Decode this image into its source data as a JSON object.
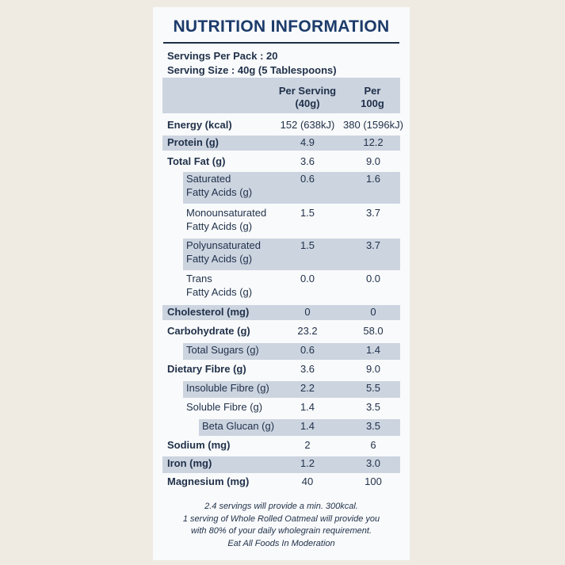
{
  "title": "NUTRITION INFORMATION",
  "servings_per_pack": "Servings Per Pack : 20",
  "serving_size": "Serving Size : 40g (5 Tablespoons)",
  "headers": {
    "per_serving_line1": "Per Serving",
    "per_serving_line2": "(40g)",
    "per_100g_line1": "Per",
    "per_100g_line2": "100g"
  },
  "rows": [
    {
      "line1": "Energy (kcal)",
      "line2": "",
      "per_serving": "152 (638kJ)",
      "per_100g": "380 (1596kJ)"
    },
    {
      "line1": "Protein (g)",
      "line2": "",
      "per_serving": "4.9",
      "per_100g": "12.2"
    },
    {
      "line1": "Total Fat (g)",
      "line2": "",
      "per_serving": "3.6",
      "per_100g": "9.0"
    },
    {
      "line1": "Saturated",
      "line2": "Fatty Acids (g)",
      "per_serving": "0.6",
      "per_100g": "1.6"
    },
    {
      "line1": "Monounsaturated",
      "line2": "Fatty Acids (g)",
      "per_serving": "1.5",
      "per_100g": "3.7"
    },
    {
      "line1": "Polyunsaturated",
      "line2": "Fatty Acids (g)",
      "per_serving": "1.5",
      "per_100g": "3.7"
    },
    {
      "line1": "Trans",
      "line2": "Fatty Acids (g)",
      "per_serving": "0.0",
      "per_100g": "0.0"
    },
    {
      "line1": "Cholesterol (mg)",
      "line2": "",
      "per_serving": "0",
      "per_100g": "0"
    },
    {
      "line1": "Carbohydrate (g)",
      "line2": "",
      "per_serving": "23.2",
      "per_100g": "58.0"
    },
    {
      "line1": "Total Sugars (g)",
      "line2": "",
      "per_serving": "0.6",
      "per_100g": "1.4"
    },
    {
      "line1": "Dietary Fibre (g)",
      "line2": "",
      "per_serving": "3.6",
      "per_100g": "9.0"
    },
    {
      "line1": "Insoluble Fibre (g)",
      "line2": "",
      "per_serving": "2.2",
      "per_100g": "5.5"
    },
    {
      "line1": "Soluble Fibre (g)",
      "line2": "",
      "per_serving": "1.4",
      "per_100g": "3.5"
    },
    {
      "line1": "Beta Glucan (g)",
      "line2": "",
      "per_serving": "1.4",
      "per_100g": "3.5"
    },
    {
      "line1": "Sodium (mg)",
      "line2": "",
      "per_serving": "2",
      "per_100g": "6"
    },
    {
      "line1": "Iron (mg)",
      "line2": "",
      "per_serving": "1.2",
      "per_100g": "3.0"
    },
    {
      "line1": "Magnesium (mg)",
      "line2": "",
      "per_serving": "40",
      "per_100g": "100"
    }
  ],
  "footer": [
    "2.4 servings will provide a min. 300kcal.",
    "1 serving of Whole Rolled Oatmeal will provide you",
    "with 80% of your daily wholegrain requirement.",
    "Eat All Foods In Moderation"
  ],
  "colors": {
    "background": "#efebe2",
    "label": "#f9fafb",
    "shading": "#ccd4e0",
    "text": "#1f3049",
    "title": "#1c3b6a"
  }
}
